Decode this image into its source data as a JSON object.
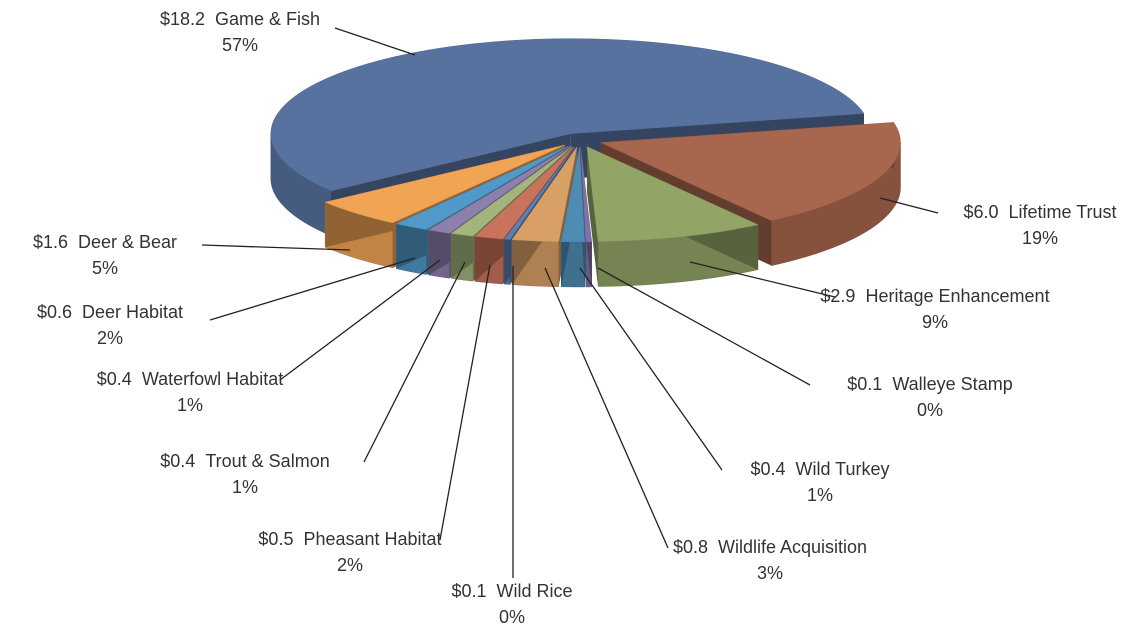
{
  "chart_data": {
    "type": "pie3d",
    "categories": [
      "Game & Fish",
      "Lifetime Trust",
      "Heritage Enhancement",
      "Walleye Stamp",
      "Wild Turkey",
      "Wildlife Acquisition",
      "Wild Rice",
      "Pheasant Habitat",
      "Trout & Salmon",
      "Waterfowl Habitat",
      "Deer Habitat",
      "Deer & Bear"
    ],
    "values": [
      18.2,
      6.0,
      2.9,
      0.1,
      0.4,
      0.8,
      0.1,
      0.5,
      0.4,
      0.4,
      0.6,
      1.6
    ],
    "value_labels": [
      "$18.2",
      "$6.0",
      "$2.9",
      "$0.1",
      "$0.4",
      "$0.8",
      "$0.1",
      "$0.5",
      "$0.4",
      "$0.4",
      "$0.6",
      "$1.6"
    ],
    "percents": [
      57,
      19,
      9,
      0,
      1,
      3,
      0,
      2,
      1,
      1,
      2,
      5
    ],
    "percent_labels": [
      "57%",
      "19%",
      "9%",
      "0%",
      "1%",
      "3%",
      "0%",
      "2%",
      "1%",
      "1%",
      "2%",
      "5%"
    ],
    "colors": [
      "#5872a0",
      "#a8664e",
      "#92a566",
      "#7f72a6",
      "#4f8cb4",
      "#d9a066",
      "#5b7fb4",
      "#c9735c",
      "#a3b47c",
      "#8d80ac",
      "#5199c9",
      "#f2a455"
    ]
  }
}
